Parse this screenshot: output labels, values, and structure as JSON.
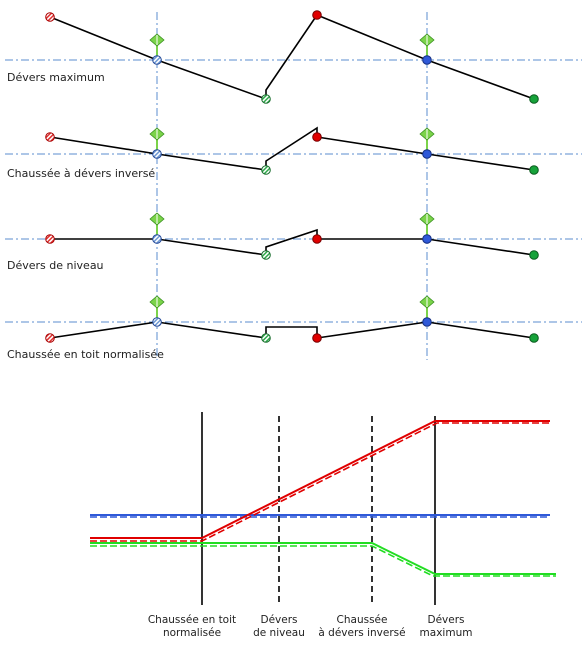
{
  "colors": {
    "axis_guides": "#5b8ccf",
    "road_line": "#000000",
    "left_hatch_point": "#e03030",
    "hinge_point": "#6f9ad6",
    "inner_hatch_point": "#2eaa4a",
    "crown_point": "#e00000",
    "right_pivot_point": "#2f59d8",
    "edge_point": "#16a23a",
    "pivot_marker": "#7bd34a"
  },
  "profiles": [
    {
      "label": "Dévers maximum"
    },
    {
      "label": "Chaussée à dévers inversé"
    },
    {
      "label": "Dévers de niveau"
    },
    {
      "label": "Chaussée en toit normalisée"
    }
  ],
  "transition": {
    "stations": [
      {
        "line1": "Chaussée en toit",
        "line2": "normalisée",
        "style": "solid"
      },
      {
        "line1": "Dévers",
        "line2": "de niveau",
        "style": "dashed"
      },
      {
        "line1": "Chaussée",
        "line2": "à dévers inversé",
        "style": "dashed"
      },
      {
        "line1": "Dévers",
        "line2": "maximum",
        "style": "solid"
      }
    ],
    "series_colors": [
      "#e00000",
      "#2f59d8",
      "#22dd22"
    ]
  }
}
